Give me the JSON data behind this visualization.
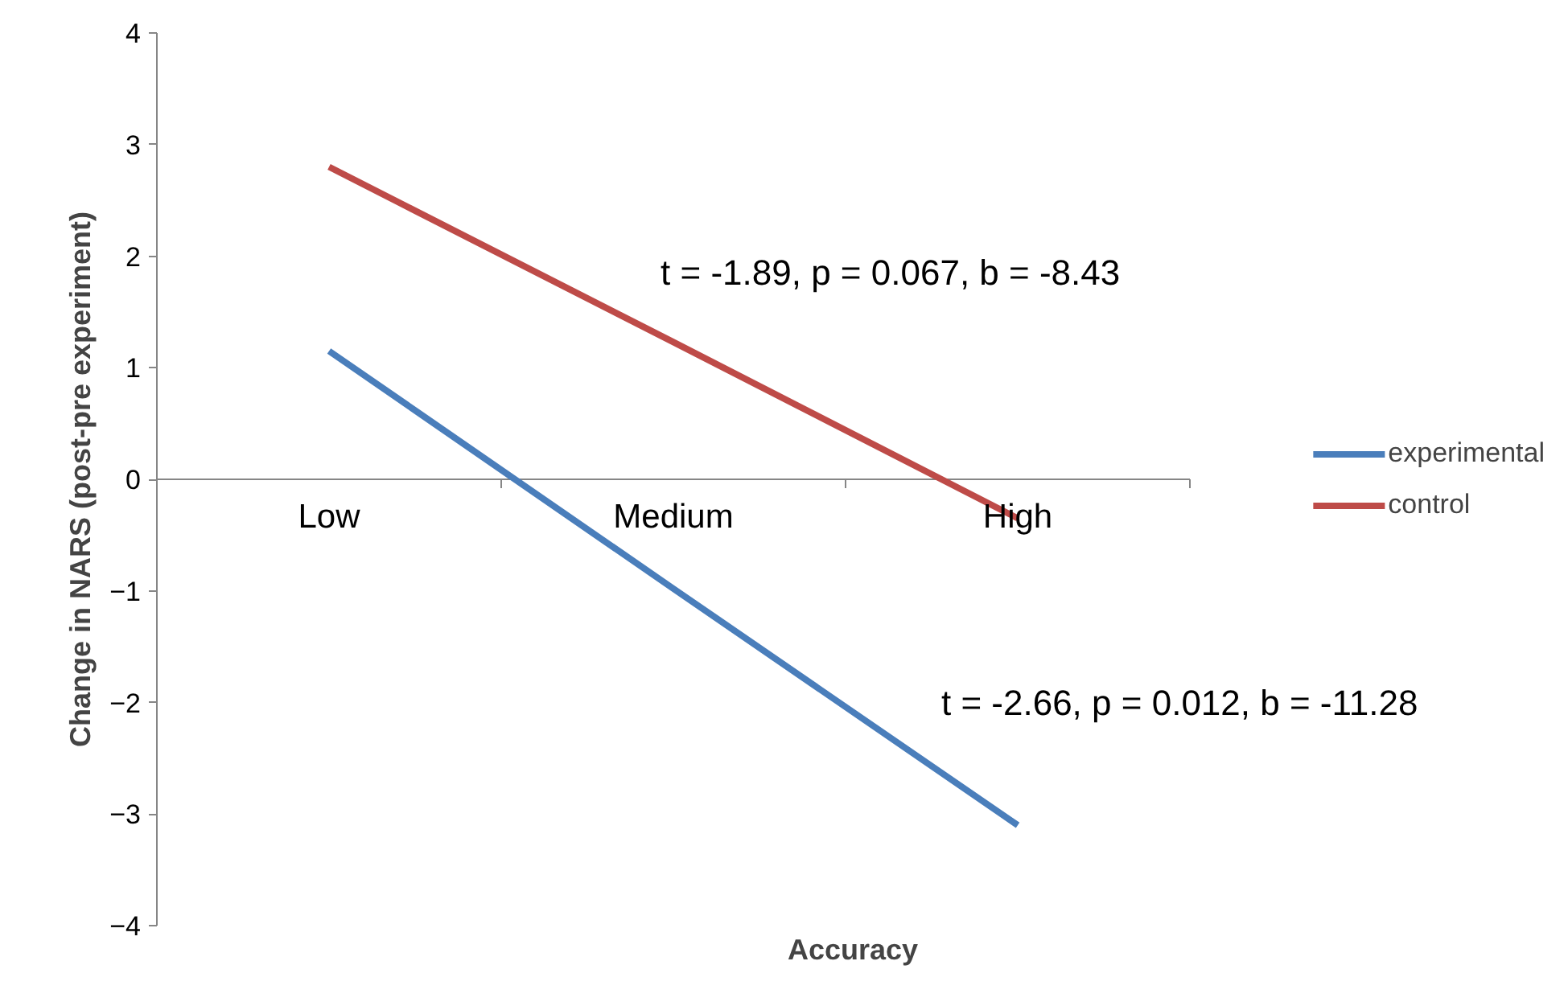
{
  "chart_data": {
    "type": "line",
    "xlabel": "Accuracy",
    "ylabel": "Change in NARS (post-pre experiment)",
    "categories": [
      "Low",
      "Medium",
      "High"
    ],
    "series": [
      {
        "name": "experimental",
        "color": "#4a7ebb",
        "values": [
          1.15,
          -0.98,
          -3.1
        ]
      },
      {
        "name": "control",
        "color": "#be4b48",
        "values": [
          2.8,
          1.23,
          -0.35
        ]
      }
    ],
    "ylim": [
      -4,
      4
    ],
    "yticks": [
      -4,
      -3,
      -2,
      -1,
      0,
      1,
      2,
      3,
      4
    ],
    "grid": false,
    "legend": "right",
    "marker": "none",
    "line_style": "solid",
    "annotations": [
      "t = -1.89, p = 0.067, b = -8.43",
      "t = -2.66, p = 0.012, b = -11.28"
    ]
  }
}
